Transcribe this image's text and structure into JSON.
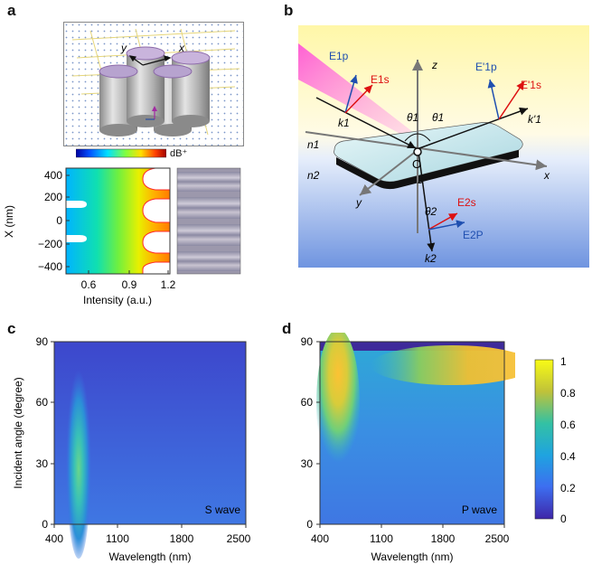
{
  "panels": {
    "a": {
      "label": "a",
      "inset_axes": {
        "x": "x",
        "y": "y"
      },
      "colorbar_unit": "dB⁺",
      "chart_data": {
        "type": "line",
        "xlabel": "Intensity (a.u.)",
        "ylabel": "X (nm)",
        "xticks": [
          "0.6",
          "0.9",
          "1.2"
        ],
        "yticks": [
          "400",
          "200",
          "0",
          "−200",
          "−400"
        ],
        "xlim": [
          0.4,
          1.2
        ],
        "ylim": [
          -450,
          450
        ]
      }
    },
    "b": {
      "label": "b",
      "symbols": {
        "E1p": "E1p",
        "E1s": "E1s",
        "E1p_prime": "E'1p",
        "E1s_prime": "E'1s",
        "E2s": "E2s",
        "E2p": "E2P",
        "k1": "k1",
        "k1_prime": "k'1",
        "k2": "k2",
        "theta1": "θ1",
        "theta2": "θ2",
        "n1": "n1",
        "n2": "n2",
        "x": "x",
        "y": "y",
        "z": "z",
        "origin": "O"
      }
    },
    "c": {
      "label": "c",
      "chart_data": {
        "type": "heatmap",
        "annotation": "S wave",
        "xlabel": "Wavelength (nm)",
        "ylabel": "Incident angle (degree)",
        "xticks": [
          "400",
          "1100",
          "1800",
          "2500"
        ],
        "yticks": [
          "0",
          "30",
          "60",
          "90"
        ],
        "xlim": [
          400,
          2500
        ],
        "ylim": [
          0,
          90
        ]
      }
    },
    "d": {
      "label": "d",
      "chart_data": {
        "type": "heatmap",
        "annotation": "P wave",
        "xlabel": "Wavelength (nm)",
        "yticks": [
          "0",
          "30",
          "60",
          "90"
        ],
        "xticks": [
          "400",
          "1100",
          "1800",
          "2500"
        ],
        "xlim": [
          400,
          2500
        ],
        "ylim": [
          0,
          90
        ]
      }
    },
    "colorbar": {
      "ticks": [
        "1",
        "0.8",
        "0.6",
        "0.4",
        "0.2",
        "0"
      ],
      "range": [
        0,
        1
      ]
    }
  }
}
